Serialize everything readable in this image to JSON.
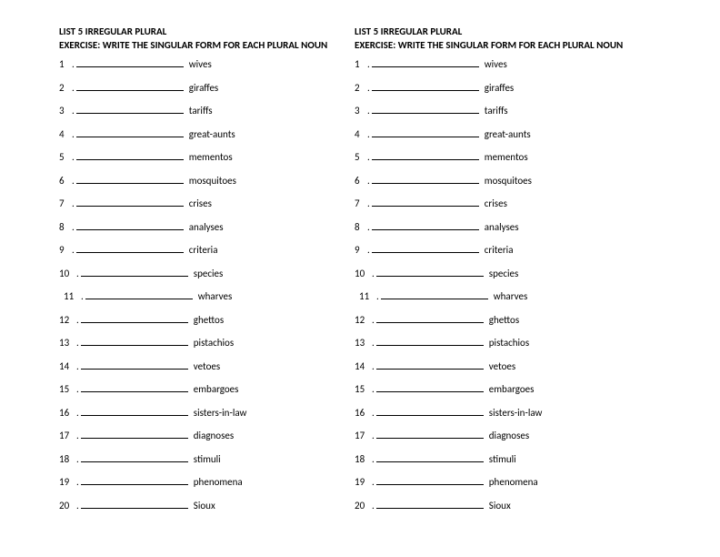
{
  "title": "LIST 5 IRREGULAR PLURAL",
  "subtitle": "EXERCISE: WRITE THE SINGULAR FORM   FOR EACH PLURAL NOUN",
  "items": [
    {
      "n": "1",
      "word": "wives"
    },
    {
      "n": "2",
      "word": "giraffes"
    },
    {
      "n": "3",
      "word": "tariffs"
    },
    {
      "n": "4",
      "word": "great-aunts"
    },
    {
      "n": "5",
      "word": "mementos"
    },
    {
      "n": "6",
      "word": "mosquitoes"
    },
    {
      "n": "7",
      "word": "crises"
    },
    {
      "n": "8",
      "word": "analyses"
    },
    {
      "n": "9",
      "word": "criteria"
    },
    {
      "n": "10",
      "word": "species"
    },
    {
      "n": "11",
      "word": "wharves"
    },
    {
      "n": "12",
      "word": "ghettos"
    },
    {
      "n": "13",
      "word": "pistachios"
    },
    {
      "n": "14",
      "word": "vetoes"
    },
    {
      "n": "15",
      "word": "embargoes"
    },
    {
      "n": "16",
      "word": "sisters-in-law"
    },
    {
      "n": "17",
      "word": "diagnoses"
    },
    {
      "n": "18",
      "word": "stimuli"
    },
    {
      "n": "19",
      "word": "phenomena"
    },
    {
      "n": "20",
      "word": "Sioux"
    }
  ]
}
